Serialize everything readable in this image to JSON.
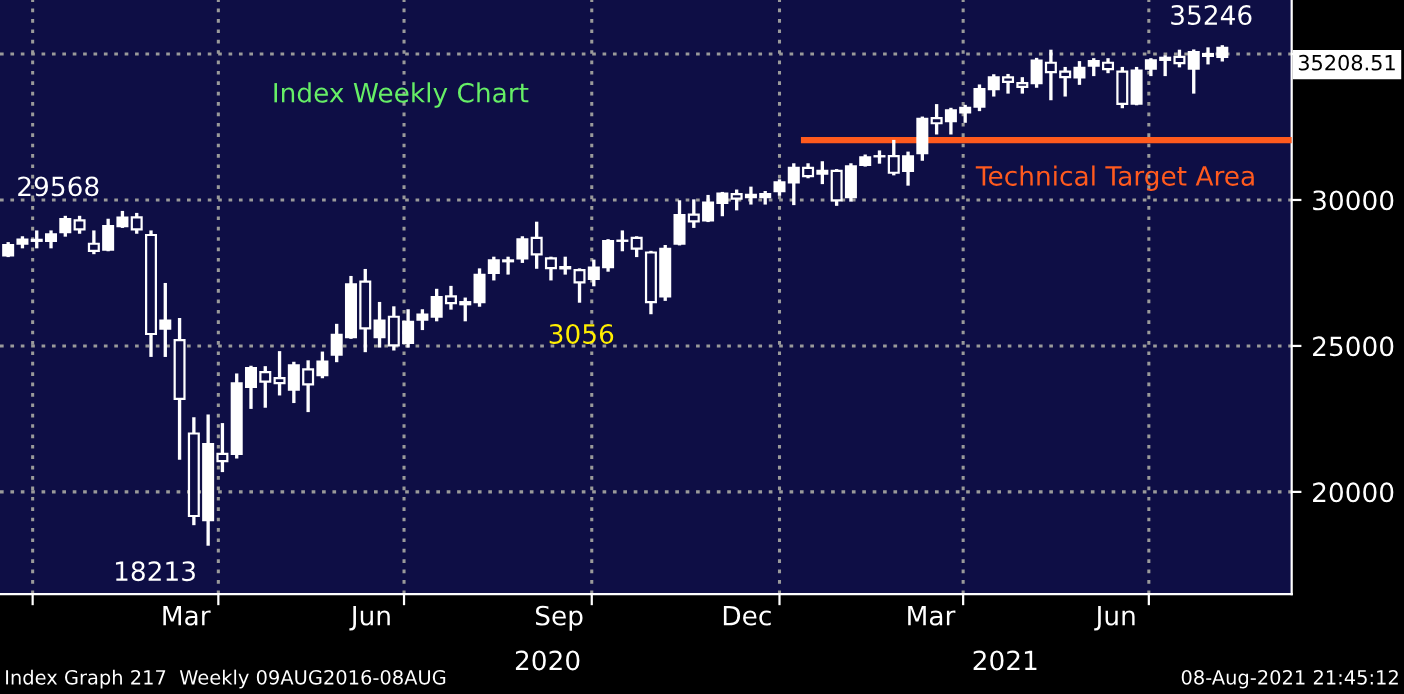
{
  "chart_data": {
    "type": "candlestick",
    "title": "Index Weekly Chart",
    "x": [
      "2019-12-20",
      "2019-12-27",
      "2020-01-03",
      "2020-01-10",
      "2020-01-17",
      "2020-01-24",
      "2020-01-31",
      "2020-02-07",
      "2020-02-14",
      "2020-02-21",
      "2020-02-28",
      "2020-03-06",
      "2020-03-13",
      "2020-03-20",
      "2020-03-27",
      "2020-04-03",
      "2020-04-10",
      "2020-04-17",
      "2020-04-24",
      "2020-05-01",
      "2020-05-08",
      "2020-05-15",
      "2020-05-22",
      "2020-05-29",
      "2020-06-05",
      "2020-06-12",
      "2020-06-19",
      "2020-06-26",
      "2020-07-03",
      "2020-07-10",
      "2020-07-17",
      "2020-07-24",
      "2020-07-31",
      "2020-08-07",
      "2020-08-14",
      "2020-08-21",
      "2020-08-28",
      "2020-09-04",
      "2020-09-11",
      "2020-09-18",
      "2020-09-25",
      "2020-10-02",
      "2020-10-09",
      "2020-10-16",
      "2020-10-23",
      "2020-10-30",
      "2020-11-06",
      "2020-11-13",
      "2020-11-20",
      "2020-11-27",
      "2020-12-04",
      "2020-12-11",
      "2020-12-18",
      "2020-12-25",
      "2021-01-01",
      "2021-01-08",
      "2021-01-15",
      "2021-01-22",
      "2021-01-29",
      "2021-02-05",
      "2021-02-12",
      "2021-02-19",
      "2021-02-26",
      "2021-03-05",
      "2021-03-12",
      "2021-03-19",
      "2021-03-26",
      "2021-04-02",
      "2021-04-09",
      "2021-04-16",
      "2021-04-23",
      "2021-04-30",
      "2021-05-07",
      "2021-05-14",
      "2021-05-21",
      "2021-05-28",
      "2021-06-04",
      "2021-06-11",
      "2021-06-18",
      "2021-06-25",
      "2021-07-02",
      "2021-07-09",
      "2021-07-16",
      "2021-07-23",
      "2021-07-30",
      "2021-08-06"
    ],
    "ohlc": [
      [
        28100,
        28500,
        28100,
        28455
      ],
      [
        28500,
        28700,
        28400,
        28645
      ],
      [
        28600,
        28900,
        28400,
        28634
      ],
      [
        28600,
        28900,
        28400,
        28823
      ],
      [
        28900,
        29400,
        28800,
        29348
      ],
      [
        29300,
        29400,
        28900,
        28989
      ],
      [
        28500,
        28900,
        28200,
        28256
      ],
      [
        28300,
        29300,
        28300,
        29102
      ],
      [
        29100,
        29568,
        29100,
        29398
      ],
      [
        29400,
        29500,
        28900,
        28992
      ],
      [
        28800,
        28900,
        24681,
        25409
      ],
      [
        25590,
        27100,
        24680,
        25864
      ],
      [
        25200,
        25900,
        21154,
        23186
      ],
      [
        22000,
        22500,
        18917,
        19174
      ],
      [
        19029,
        22595,
        18213,
        21637
      ],
      [
        21300,
        22300,
        20735,
        21053
      ],
      [
        21300,
        24000,
        21200,
        23719
      ],
      [
        23600,
        24264,
        22900,
        24242
      ],
      [
        24100,
        24250,
        22940,
        23775
      ],
      [
        23900,
        24765,
        23360,
        23724
      ],
      [
        23500,
        24400,
        23100,
        24331
      ],
      [
        24200,
        24450,
        22790,
        23685
      ],
      [
        24000,
        24750,
        23950,
        24465
      ],
      [
        24700,
        25700,
        24500,
        25383
      ],
      [
        25300,
        27340,
        25300,
        27111
      ],
      [
        27200,
        27580,
        24843,
        25605
      ],
      [
        25300,
        26450,
        25000,
        25871
      ],
      [
        26000,
        26300,
        24900,
        25016
      ],
      [
        25100,
        26200,
        25000,
        25827
      ],
      [
        25900,
        26200,
        25600,
        26075
      ],
      [
        26000,
        26900,
        25900,
        26672
      ],
      [
        26700,
        27000,
        26300,
        26470
      ],
      [
        26500,
        26600,
        25900,
        26428
      ],
      [
        26500,
        27600,
        26400,
        27433
      ],
      [
        27500,
        28000,
        27300,
        27931
      ],
      [
        27900,
        28000,
        27500,
        27930
      ],
      [
        28000,
        28700,
        27900,
        28654
      ],
      [
        28700,
        29199,
        27700,
        28133
      ],
      [
        28000,
        28000,
        27300,
        27666
      ],
      [
        27700,
        28000,
        27500,
        27657
      ],
      [
        27600,
        27600,
        26537,
        27174
      ],
      [
        27300,
        27900,
        27100,
        27682
      ],
      [
        27700,
        28600,
        27600,
        28587
      ],
      [
        28600,
        28900,
        28300,
        28606
      ],
      [
        28700,
        28700,
        28100,
        28335
      ],
      [
        28200,
        28200,
        26143,
        26502
      ],
      [
        26700,
        28400,
        26600,
        28323
      ],
      [
        28500,
        29933,
        28500,
        29479
      ],
      [
        29500,
        29964,
        29100,
        29263
      ],
      [
        29300,
        30116,
        29300,
        29910
      ],
      [
        29900,
        30218,
        29500,
        30218
      ],
      [
        30200,
        30300,
        29700,
        30046
      ],
      [
        30100,
        30400,
        29900,
        30179
      ],
      [
        30100,
        30250,
        29900,
        30200
      ],
      [
        30300,
        30650,
        30200,
        30606
      ],
      [
        30600,
        31200,
        29881,
        31098
      ],
      [
        31100,
        31200,
        30800,
        30814
      ],
      [
        30900,
        31270,
        30600,
        30997
      ],
      [
        31000,
        31000,
        29856,
        29983
      ],
      [
        30100,
        31200,
        30000,
        31148
      ],
      [
        31200,
        31500,
        31200,
        31458
      ],
      [
        31500,
        31640,
        31300,
        31494
      ],
      [
        31500,
        32000,
        30900,
        30932
      ],
      [
        31000,
        31600,
        30547,
        31496
      ],
      [
        31600,
        32800,
        31400,
        32779
      ],
      [
        32800,
        33227,
        32300,
        32628
      ],
      [
        32700,
        33100,
        32300,
        33073
      ],
      [
        33000,
        33200,
        32700,
        33153
      ],
      [
        33200,
        33900,
        33100,
        33801
      ],
      [
        33800,
        34250,
        33600,
        34200
      ],
      [
        34200,
        34260,
        33700,
        34043
      ],
      [
        34000,
        34150,
        33700,
        33875
      ],
      [
        34000,
        34811,
        33900,
        34778
      ],
      [
        34700,
        35091,
        33473,
        34382
      ],
      [
        34400,
        34500,
        33600,
        34208
      ],
      [
        34200,
        34700,
        34000,
        34529
      ],
      [
        34600,
        34800,
        34300,
        34756
      ],
      [
        34700,
        34800,
        34400,
        34480
      ],
      [
        34400,
        34500,
        33200,
        33290
      ],
      [
        33300,
        34500,
        33300,
        34433
      ],
      [
        34500,
        34800,
        34300,
        34786
      ],
      [
        34800,
        34900,
        34300,
        34870
      ],
      [
        34900,
        35091,
        34600,
        34687
      ],
      [
        34500,
        35100,
        33700,
        35062
      ],
      [
        35000,
        35171,
        34700,
        34935
      ],
      [
        34900,
        35246,
        34800,
        35208.51
      ]
    ],
    "color": "#ffffff",
    "series": [
      {
        "type": "line",
        "name": "Technical Target Area",
        "color": "#ff5a1e",
        "x": [
          "2021-01-13",
          "2021-09-09"
        ],
        "values": [
          32050,
          32050
        ]
      }
    ],
    "xlim": [
      "2019-12-16",
      "2021-09-09"
    ],
    "xticks": [
      {
        "value": "2020-01-01",
        "label": null
      },
      {
        "value": "2020-03-16",
        "label": "Mar"
      },
      {
        "value": "2020-04-01",
        "label": null
      },
      {
        "value": "2020-06-15",
        "label": "Jun"
      },
      {
        "value": "2020-07-01",
        "label": null
      },
      {
        "value": "2020-09-15",
        "label": "Sep"
      },
      {
        "value": "2020-10-01",
        "label": null
      },
      {
        "value": "2020-12-16",
        "label": "Dec"
      },
      {
        "value": "2021-01-01",
        "label": null
      },
      {
        "value": "2021-03-16",
        "label": "Mar"
      },
      {
        "value": "2021-04-01",
        "label": null
      },
      {
        "value": "2021-06-15",
        "label": "Jun"
      },
      {
        "value": "2021-07-01",
        "label": null
      }
    ],
    "ylim": [
      16500,
      36850
    ],
    "yticks": [
      20000,
      25000,
      30000,
      {
        "value": 35000,
        "label": null
      }
    ],
    "grid": true,
    "legend": false,
    "annotations": [
      {
        "text": "29568",
        "x": "2020-02-14",
        "y": 29568
      },
      {
        "text": "18213",
        "x": "2020-03-27",
        "y": 18213
      },
      {
        "text": "35246",
        "x": "2021-08-06",
        "y": 35246
      },
      "35208.51",
      "3056",
      "2020",
      "2021",
      "Index Graph 217  Weekly 09AUG2016-08AUG",
      "08-Aug-2021 21:45:12"
    ]
  }
}
